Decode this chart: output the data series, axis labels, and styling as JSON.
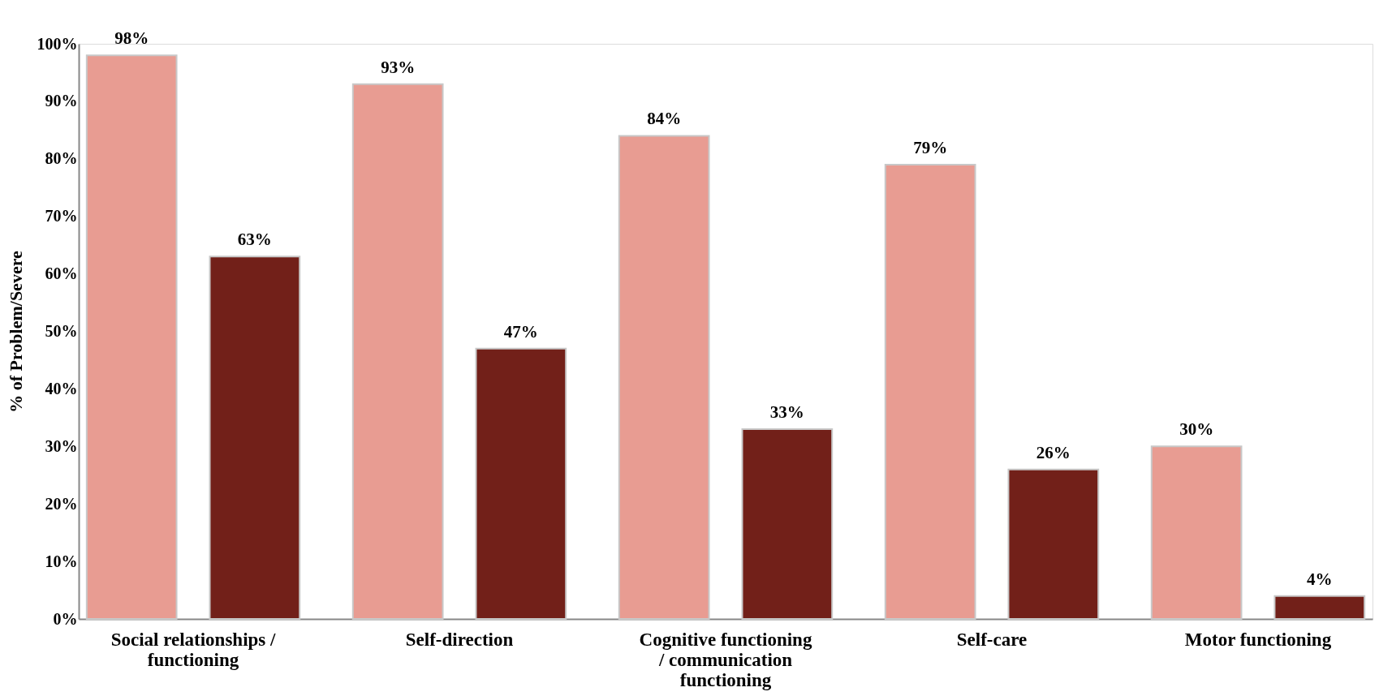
{
  "chart_data": {
    "type": "bar",
    "ylabel": "% of Problem/Severe",
    "categories": [
      "Social relationships / functioning",
      "Self-direction",
      "Cognitive functioning / communication functioning",
      "Self-care",
      "Motor functioning"
    ],
    "series": [
      {
        "color": "#e89c92",
        "values": [
          98,
          93,
          84,
          79,
          30
        ],
        "value_labels": [
          "98%",
          "93%",
          "84%",
          "79%",
          "30%"
        ]
      },
      {
        "color": "#722019",
        "values": [
          63,
          47,
          33,
          26,
          4
        ],
        "value_labels": [
          "63%",
          "47%",
          "33%",
          "26%",
          "4%"
        ]
      }
    ],
    "ylim": [
      0,
      100
    ],
    "yticks": [
      {
        "value": 0,
        "label": "0%"
      },
      {
        "value": 10,
        "label": "10%"
      },
      {
        "value": 20,
        "label": "20%"
      },
      {
        "value": 30,
        "label": "30%"
      },
      {
        "value": 40,
        "label": "40%"
      },
      {
        "value": 50,
        "label": "50%"
      },
      {
        "value": 60,
        "label": "60%"
      },
      {
        "value": 70,
        "label": "70%"
      },
      {
        "value": 80,
        "label": "80%"
      },
      {
        "value": 90,
        "label": "90%"
      },
      {
        "value": 100,
        "label": "100%"
      }
    ],
    "grid": false,
    "legend": false
  }
}
